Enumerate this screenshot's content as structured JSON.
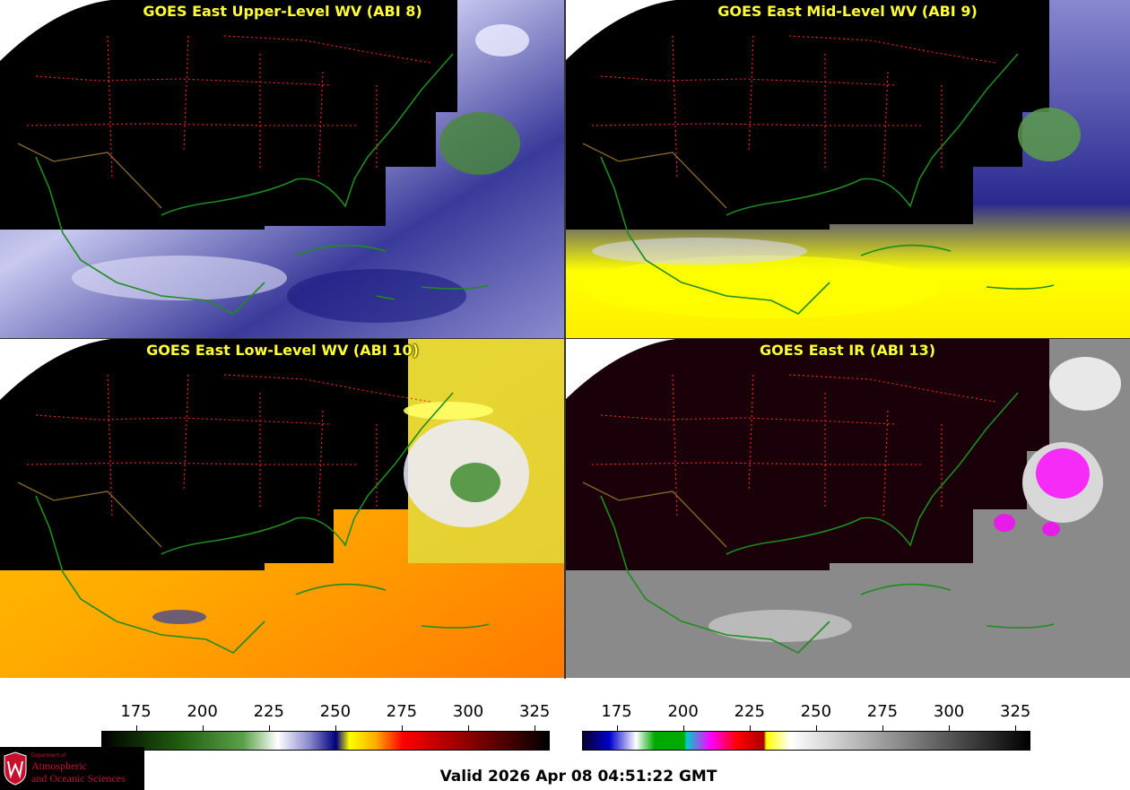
{
  "panels": [
    {
      "id": "p1",
      "title": "GOES East Upper-Level WV (ABI 8)",
      "palette": "wv-upper"
    },
    {
      "id": "p2",
      "title": "GOES East Mid-Level WV (ABI 9)",
      "palette": "wv-mid"
    },
    {
      "id": "p3",
      "title": "GOES East Low-Level WV (ABI 10)",
      "palette": "wv-low"
    },
    {
      "id": "p4",
      "title": "GOES East IR (ABI 13)",
      "palette": "ir"
    }
  ],
  "colorbars": {
    "left": {
      "ticks": [
        "175",
        "200",
        "225",
        "250",
        "275",
        "300",
        "325"
      ],
      "range": [
        162,
        330
      ],
      "tick_values": [
        175,
        200,
        225,
        250,
        275,
        300,
        325
      ],
      "stops": [
        {
          "v": 162,
          "c": "#000000"
        },
        {
          "v": 190,
          "c": "#1f5a0f"
        },
        {
          "v": 215,
          "c": "#5aa048"
        },
        {
          "v": 228,
          "c": "#ffffff"
        },
        {
          "v": 240,
          "c": "#8888cc"
        },
        {
          "v": 250,
          "c": "#00007a"
        },
        {
          "v": 255,
          "c": "#ffff00"
        },
        {
          "v": 265,
          "c": "#ffaa00"
        },
        {
          "v": 275,
          "c": "#ff0000"
        },
        {
          "v": 300,
          "c": "#8a0000"
        },
        {
          "v": 330,
          "c": "#000000"
        }
      ]
    },
    "right": {
      "ticks": [
        "175",
        "200",
        "225",
        "250",
        "275",
        "300",
        "325"
      ],
      "range": [
        162,
        330
      ],
      "tick_values": [
        175,
        200,
        225,
        250,
        275,
        300,
        325
      ],
      "stops": [
        {
          "v": 162,
          "c": "#0a0030"
        },
        {
          "v": 172,
          "c": "#0000cc"
        },
        {
          "v": 182,
          "c": "#ffffff"
        },
        {
          "v": 189,
          "c": "#00aa00"
        },
        {
          "v": 200,
          "c": "#00aa00"
        },
        {
          "v": 201,
          "c": "#00cccc"
        },
        {
          "v": 210,
          "c": "#ff00ff"
        },
        {
          "v": 220,
          "c": "#ff0000"
        },
        {
          "v": 230,
          "c": "#aa0000"
        },
        {
          "v": 231,
          "c": "#ffff00"
        },
        {
          "v": 240,
          "c": "#ffffff"
        },
        {
          "v": 330,
          "c": "#000000"
        }
      ]
    }
  },
  "logo": {
    "dept": "Department of",
    "line1": "Atmospheric",
    "line2": "and Oceanic Sciences"
  },
  "valid_time": "Valid 2026 Apr 08 04:51:22 GMT",
  "colors": {
    "coast": "#1e8c1e",
    "state_borders": "#ff2222",
    "country_borders": "#8a6a2a",
    "title": "#ffff33"
  }
}
